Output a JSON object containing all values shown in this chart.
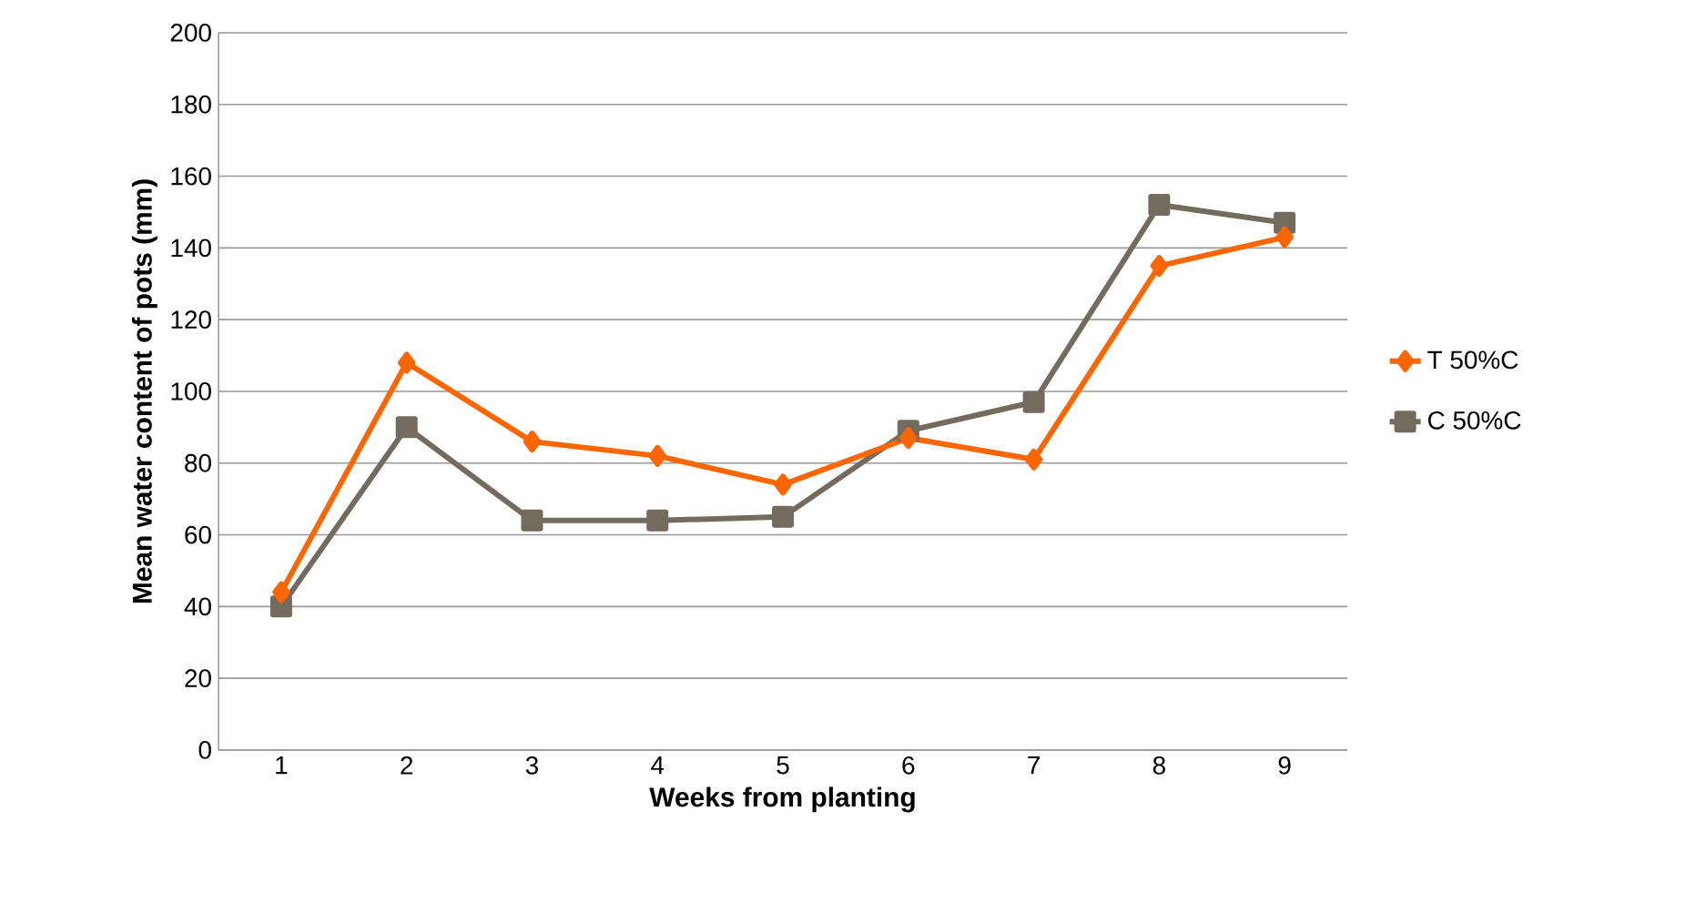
{
  "chart_data": {
    "type": "line",
    "xlabel": "Weeks from planting",
    "ylabel": "Mean water content of pots  (mm)",
    "categories": [
      "1",
      "2",
      "3",
      "4",
      "5",
      "6",
      "7",
      "8",
      "9"
    ],
    "series": [
      {
        "name": "T 50%C",
        "color": "#ff6600",
        "marker": "diamond",
        "values": [
          44,
          108,
          86,
          82,
          74,
          87,
          81,
          135,
          143
        ]
      },
      {
        "name": "C 50%C",
        "color": "#736b5e",
        "marker": "square",
        "values": [
          40,
          90,
          64,
          64,
          65,
          89,
          97,
          152,
          147
        ]
      }
    ],
    "ylim": [
      0,
      200
    ],
    "yticks": [
      0,
      20,
      40,
      60,
      80,
      100,
      120,
      140,
      160,
      180,
      200
    ],
    "grid": "y",
    "legend": "right"
  }
}
